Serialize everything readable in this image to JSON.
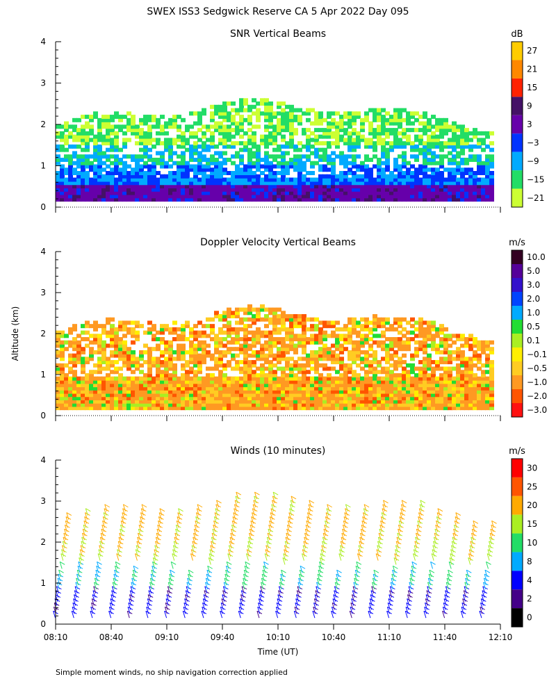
{
  "title": "SWEX ISS3 Sedgwick Reserve CA   5 Apr 2022 Day 095",
  "y_axis_label": "Altitude (km)",
  "x_axis_label": "Time (UT)",
  "footnote": "Simple moment winds, no ship navigation correction applied",
  "x_ticks": [
    "08:10",
    "08:40",
    "09:10",
    "09:40",
    "10:10",
    "10:40",
    "11:10",
    "11:40",
    "12:10"
  ],
  "y_ticks": [
    "0",
    "1",
    "2",
    "3",
    "4"
  ],
  "chart_data": [
    {
      "type": "heatmap",
      "title": "SNR Vertical Beams",
      "unit": "dB",
      "ylim": [
        0,
        4
      ],
      "colorbar": {
        "labels": [
          "27",
          "21",
          "15",
          "9",
          "3",
          "−3",
          "−9",
          "−15",
          "−21"
        ],
        "colors": [
          "#ffcc00",
          "#ff8800",
          "#ff2200",
          "#441166",
          "#6600aa",
          "#0033ff",
          "#00aaff",
          "#22dd66",
          "#ccff33"
        ]
      }
    },
    {
      "type": "heatmap",
      "title": "Doppler Velocity Vertical Beams",
      "unit": "m/s",
      "ylim": [
        0,
        4
      ],
      "colorbar": {
        "labels": [
          "10.0",
          "5.0",
          "3.0",
          "2.0",
          "1.0",
          "0.5",
          "0.1",
          "−0.1",
          "−0.5",
          "−1.0",
          "−2.0",
          "−3.0"
        ],
        "colors": [
          "#330022",
          "#550099",
          "#3311cc",
          "#0044ff",
          "#00aaff",
          "#22dd33",
          "#aaee22",
          "#ffee00",
          "#ffcc22",
          "#ff9922",
          "#ff5500",
          "#ff1111"
        ]
      }
    },
    {
      "type": "scatter",
      "title": "Winds (10 minutes)",
      "unit": "m/s",
      "ylim": [
        0,
        4
      ],
      "colorbar": {
        "labels": [
          "30",
          "25",
          "20",
          "15",
          "10",
          "8",
          "4",
          "2",
          "0"
        ],
        "colors": [
          "#ff0000",
          "#ff5500",
          "#ffaa00",
          "#aaee22",
          "#22dd66",
          "#00aaff",
          "#0000ff",
          "#440088",
          "#000000"
        ]
      }
    }
  ]
}
